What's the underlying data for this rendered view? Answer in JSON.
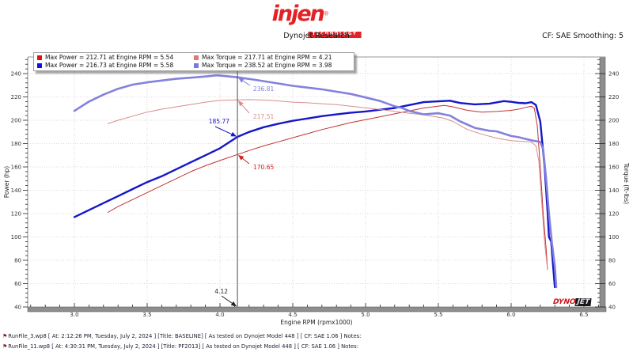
{
  "header": {
    "logo_word": "injen",
    "logo_reg": "®",
    "logo_sub": "TECHNOLOGY",
    "title": "Dynojet Research",
    "smoothing": "CF: SAE Smoothing: 5"
  },
  "legend": {
    "items": [
      {
        "marker_color": "#dd1111",
        "label": "Max Power = 212.71 at Engine RPM = 5.54"
      },
      {
        "marker_color": "#e07878",
        "label": "Max Torque = 217.71 at Engine RPM = 4.21"
      },
      {
        "marker_color": "#1111dd",
        "label": "Max Power = 216.73 at Engine RPM = 5.58"
      },
      {
        "marker_color": "#7878e0",
        "label": "Max Torque = 238.52 at Engine RPM = 3.98"
      }
    ]
  },
  "chart_data": {
    "type": "line",
    "xlabel": "Engine RPM (rpmx1000)",
    "ylabel_left": "Power (hp)",
    "ylabel_right": "Torque (ft-lbs)",
    "xlim": [
      2.68,
      6.61
    ],
    "ylim": [
      40,
      254
    ],
    "grid": true,
    "legend_position": "top-left",
    "x_ticks": [
      "3.0",
      "3.5",
      "4.0",
      "4.5",
      "5.0",
      "5.5",
      "6.0",
      "6.5"
    ],
    "y_ticks": [
      40,
      60,
      80,
      100,
      120,
      140,
      160,
      180,
      200,
      220,
      240
    ],
    "series": [
      {
        "name": "power-baseline",
        "color": "#c13232",
        "width": 1,
        "points": [
          [
            3.23,
            121
          ],
          [
            3.3,
            126
          ],
          [
            3.4,
            132
          ],
          [
            3.5,
            138
          ],
          [
            3.6,
            144
          ],
          [
            3.7,
            150
          ],
          [
            3.8,
            156
          ],
          [
            3.9,
            161
          ],
          [
            4.0,
            165.5
          ],
          [
            4.12,
            170.65
          ],
          [
            4.2,
            174
          ],
          [
            4.3,
            178
          ],
          [
            4.4,
            181.5
          ],
          [
            4.5,
            185
          ],
          [
            4.6,
            188.5
          ],
          [
            4.7,
            192
          ],
          [
            4.8,
            195
          ],
          [
            4.9,
            198
          ],
          [
            5.0,
            200.5
          ],
          [
            5.1,
            203
          ],
          [
            5.2,
            205.5
          ],
          [
            5.3,
            208
          ],
          [
            5.4,
            210.5
          ],
          [
            5.54,
            212.71
          ],
          [
            5.6,
            211.5
          ],
          [
            5.7,
            208.5
          ],
          [
            5.8,
            207
          ],
          [
            5.9,
            207.5
          ],
          [
            6.0,
            208.5
          ],
          [
            6.05,
            209.5
          ],
          [
            6.1,
            211
          ],
          [
            6.14,
            212
          ],
          [
            6.16,
            210
          ],
          [
            6.18,
            195
          ],
          [
            6.2,
            160
          ],
          [
            6.22,
            120
          ],
          [
            6.24,
            90
          ],
          [
            6.25,
            72
          ]
        ]
      },
      {
        "name": "power-pf2013",
        "color": "#1616c8",
        "width": 2.4,
        "points": [
          [
            3.0,
            117
          ],
          [
            3.1,
            123
          ],
          [
            3.2,
            129
          ],
          [
            3.3,
            135
          ],
          [
            3.4,
            141
          ],
          [
            3.5,
            147
          ],
          [
            3.6,
            152
          ],
          [
            3.7,
            158
          ],
          [
            3.8,
            164
          ],
          [
            3.9,
            170
          ],
          [
            4.0,
            176
          ],
          [
            4.12,
            185.77
          ],
          [
            4.2,
            190
          ],
          [
            4.3,
            194
          ],
          [
            4.4,
            197
          ],
          [
            4.5,
            199.5
          ],
          [
            4.6,
            201.5
          ],
          [
            4.7,
            203.5
          ],
          [
            4.8,
            205
          ],
          [
            4.9,
            206.5
          ],
          [
            5.0,
            207.5
          ],
          [
            5.1,
            209
          ],
          [
            5.2,
            210.5
          ],
          [
            5.3,
            213
          ],
          [
            5.4,
            215.5
          ],
          [
            5.5,
            216.2
          ],
          [
            5.58,
            216.73
          ],
          [
            5.65,
            214.8
          ],
          [
            5.75,
            213.6
          ],
          [
            5.85,
            214.2
          ],
          [
            5.95,
            216.4
          ],
          [
            6.0,
            215.8
          ],
          [
            6.05,
            214.9
          ],
          [
            6.1,
            214.6
          ],
          [
            6.14,
            215.5
          ],
          [
            6.17,
            213
          ],
          [
            6.2,
            199
          ],
          [
            6.23,
            160
          ],
          [
            6.25,
            122
          ],
          [
            6.26,
            100
          ],
          [
            6.275,
            96
          ],
          [
            6.29,
            72
          ],
          [
            6.3,
            57
          ]
        ]
      },
      {
        "name": "torque-baseline",
        "color": "#d98c8c",
        "width": 1,
        "points": [
          [
            3.23,
            197
          ],
          [
            3.3,
            200
          ],
          [
            3.4,
            203.5
          ],
          [
            3.5,
            207
          ],
          [
            3.6,
            209.5
          ],
          [
            3.7,
            211.5
          ],
          [
            3.8,
            213.5
          ],
          [
            3.9,
            215.5
          ],
          [
            4.0,
            217
          ],
          [
            4.12,
            217.51
          ],
          [
            4.21,
            217.71
          ],
          [
            4.35,
            217
          ],
          [
            4.5,
            215.5
          ],
          [
            4.6,
            215
          ],
          [
            4.7,
            214.2
          ],
          [
            4.8,
            213.4
          ],
          [
            4.9,
            212
          ],
          [
            5.0,
            210.6
          ],
          [
            5.1,
            209.2
          ],
          [
            5.2,
            207.6
          ],
          [
            5.3,
            206
          ],
          [
            5.4,
            204.7
          ],
          [
            5.54,
            201.7
          ],
          [
            5.6,
            199
          ],
          [
            5.7,
            192
          ],
          [
            5.8,
            188
          ],
          [
            5.9,
            184.7
          ],
          [
            6.0,
            182.5
          ],
          [
            6.1,
            181.7
          ],
          [
            6.14,
            181.3
          ],
          [
            6.17,
            178
          ],
          [
            6.19,
            165
          ],
          [
            6.21,
            130
          ],
          [
            6.23,
            95
          ],
          [
            6.25,
            72
          ]
        ]
      },
      {
        "name": "torque-pf2013",
        "color": "#8282dd",
        "width": 2.6,
        "points": [
          [
            3.0,
            208
          ],
          [
            3.1,
            216
          ],
          [
            3.2,
            222
          ],
          [
            3.3,
            227
          ],
          [
            3.4,
            230.5
          ],
          [
            3.5,
            232.5
          ],
          [
            3.6,
            234
          ],
          [
            3.7,
            235.5
          ],
          [
            3.8,
            236.5
          ],
          [
            3.9,
            237.5
          ],
          [
            3.98,
            238.52
          ],
          [
            4.12,
            236.81
          ],
          [
            4.25,
            234.5
          ],
          [
            4.4,
            231.5
          ],
          [
            4.5,
            229.5
          ],
          [
            4.6,
            228
          ],
          [
            4.7,
            226.5
          ],
          [
            4.8,
            224.5
          ],
          [
            4.9,
            222.5
          ],
          [
            5.0,
            219.5
          ],
          [
            5.1,
            216.5
          ],
          [
            5.2,
            212
          ],
          [
            5.25,
            210.5
          ],
          [
            5.3,
            208
          ],
          [
            5.4,
            205
          ],
          [
            5.5,
            206
          ],
          [
            5.58,
            204
          ],
          [
            5.65,
            199
          ],
          [
            5.75,
            193.5
          ],
          [
            5.85,
            191
          ],
          [
            5.9,
            190.5
          ],
          [
            6.0,
            186.5
          ],
          [
            6.05,
            185.5
          ],
          [
            6.1,
            184
          ],
          [
            6.15,
            182.5
          ],
          [
            6.2,
            181.5
          ],
          [
            6.22,
            175
          ],
          [
            6.24,
            150
          ],
          [
            6.26,
            120
          ],
          [
            6.28,
            95
          ],
          [
            6.3,
            75
          ],
          [
            6.31,
            57
          ]
        ]
      }
    ],
    "cursor": {
      "x": 4.12
    },
    "annotations": [
      {
        "text": "236.81",
        "color": "#8282dd",
        "target": [
          4.12,
          236.81
        ],
        "label": [
          320,
          115
        ],
        "anchor": "start",
        "arrow_from": [
          316,
          108
        ]
      },
      {
        "text": "217.51",
        "color": "#d98c8c",
        "target": [
          4.12,
          217.51
        ],
        "label": [
          320,
          150
        ],
        "anchor": "start",
        "arrow_from": [
          315,
          143
        ]
      },
      {
        "text": "185.77",
        "color": "#1616c8",
        "target": [
          4.12,
          185.77
        ],
        "label": [
          290,
          156
        ],
        "anchor": "end",
        "arrow_from": [
          272,
          160
        ]
      },
      {
        "text": "170.65",
        "color": "#cc2222",
        "target": [
          4.12,
          170.65
        ],
        "label": [
          320,
          214
        ],
        "anchor": "start",
        "arrow_from": [
          315,
          207
        ]
      },
      {
        "text": "4.12",
        "color": "#222222",
        "target": [
          4.12,
          40
        ],
        "label": [
          288,
          371
        ],
        "anchor": "end",
        "arrow_from": [
          280,
          374
        ]
      }
    ]
  },
  "watermark": {
    "dyno": "DYNO",
    "jet": "JET"
  },
  "footer": {
    "icon": "⚑",
    "lines": [
      "RunFile_3.wp8 [ At: 2:12:26 PM, Tuesday, July 2, 2024 ] [Title: BASELINE]  [ As tested on Dynojet Model 448 ] [ CF: SAE 1.06 ] Notes:",
      "RunFile_11.wp8 [ At: 4:30:31 PM, Tuesday, July 2, 2024 ] [Title: PF2013]  [ As tested on Dynojet Model 448 ] [ CF: SAE 1.06 ] Notes:"
    ]
  }
}
